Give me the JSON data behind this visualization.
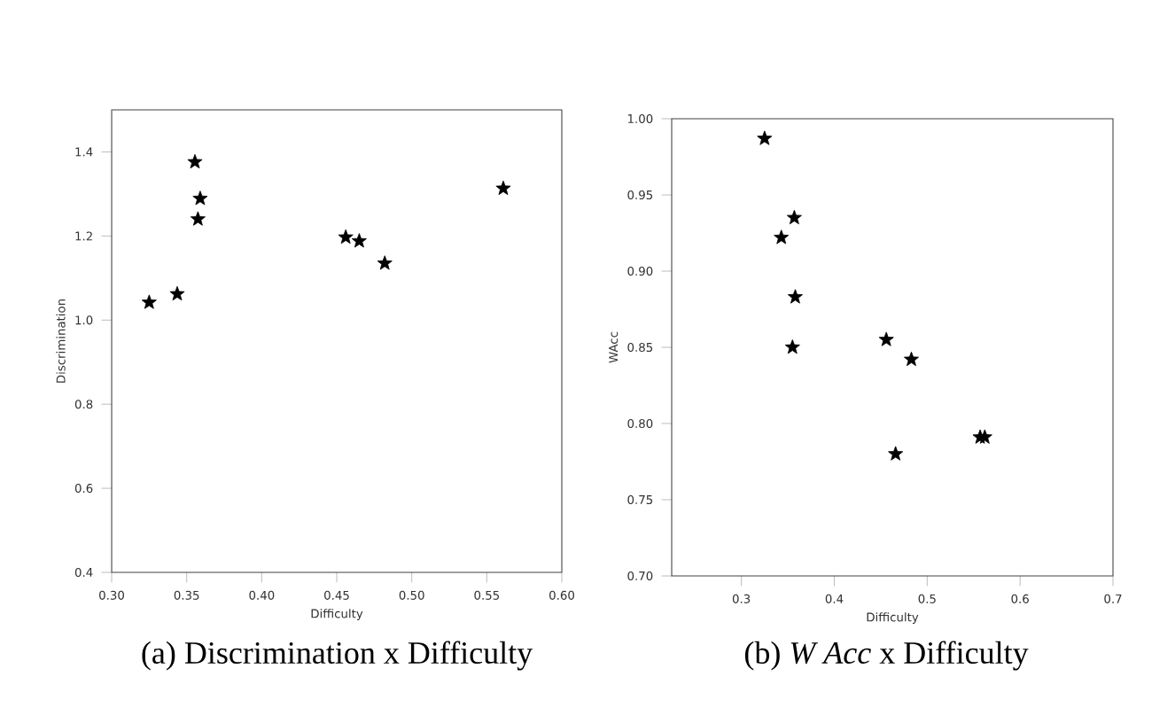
{
  "chart_data": [
    {
      "type": "scatter",
      "xlabel": "Difficulty",
      "ylabel": "Discrimination",
      "annotations": [
        "(a) Discrimination x Difficulty"
      ],
      "color": "#000000",
      "marker": "star",
      "grid": false,
      "x": [
        0.3555,
        0.359,
        0.3575,
        0.325,
        0.3437,
        0.456,
        0.465,
        0.482,
        0.561
      ],
      "values": [
        1.376,
        1.289,
        1.24,
        1.042,
        1.062,
        1.197,
        1.188,
        1.135,
        1.313
      ],
      "xlim": [
        0.3,
        0.6
      ],
      "ylim": [
        0.4,
        1.5
      ],
      "xticks": [
        {
          "value": 0.3,
          "label": "0.30"
        },
        0.35,
        {
          "value": 0.4,
          "label": "0.40"
        },
        0.45,
        {
          "value": 0.5,
          "label": "0.50"
        },
        0.55,
        {
          "value": 0.6,
          "label": "0.60"
        }
      ],
      "yticks": [
        0.4,
        0.6,
        0.8,
        {
          "value": 1,
          "label": "1.0"
        },
        1.2,
        1.4
      ]
    },
    {
      "type": "scatter",
      "xlabel": "Difficulty",
      "ylabel": "WAcc",
      "annotations": [
        "(b) *W Acc* x Difficulty"
      ],
      "color": "#000000",
      "marker": "star",
      "grid": false,
      "x": [
        0.325,
        0.357,
        0.343,
        0.358,
        0.355,
        0.456,
        0.483,
        0.466,
        0.557,
        0.562
      ],
      "values": [
        0.987,
        0.935,
        0.922,
        0.883,
        0.85,
        0.855,
        0.842,
        0.78,
        0.791,
        0.791
      ],
      "xlim": [
        0.225,
        0.7
      ],
      "ylim": [
        0.7,
        1.0
      ],
      "xticks": [
        0.3,
        0.4,
        0.5,
        0.6,
        0.7
      ],
      "yticks": [
        {
          "value": 0.7,
          "label": "0.70"
        },
        0.75,
        {
          "value": 0.8,
          "label": "0.80"
        },
        0.85,
        {
          "value": 0.9,
          "label": "0.90"
        },
        0.95,
        {
          "value": 1,
          "label": "1.00"
        }
      ]
    }
  ]
}
